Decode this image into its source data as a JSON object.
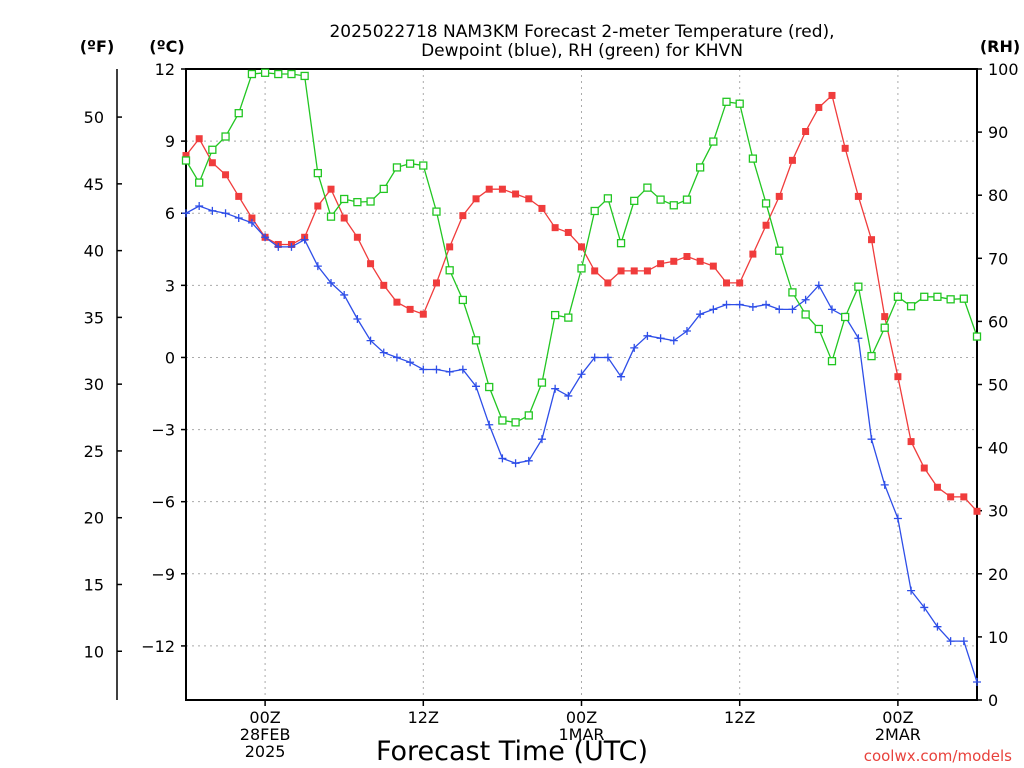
{
  "chart_data": {
    "type": "line",
    "title_line1": "2025022718 NAM3KM Forecast 2-meter Temperature (red),",
    "title_line2": "Dewpoint (blue), RH (green) for KHVN",
    "xlabel": "Forecast Time (UTC)",
    "left_outer_unit": "(ºF)",
    "left_inner_unit": "(ºC)",
    "right_unit": "(RH)",
    "credit": "coolwx.com/models",
    "grid": true,
    "x_range_hours": [
      -6,
      54
    ],
    "y_left_range_c": [
      -14.25,
      12
    ],
    "y_right_range": [
      0,
      100
    ],
    "x_ticks": [
      {
        "hour": 0,
        "l1": "00Z",
        "l2": "28FEB",
        "l3": "2025"
      },
      {
        "hour": 12,
        "l1": "12Z",
        "l2": "",
        "l3": ""
      },
      {
        "hour": 24,
        "l1": "00Z",
        "l2": "1MAR",
        "l3": ""
      },
      {
        "hour": 36,
        "l1": "12Z",
        "l2": "",
        "l3": ""
      },
      {
        "hour": 48,
        "l1": "00Z",
        "l2": "2MAR",
        "l3": ""
      }
    ],
    "yC_ticks": [
      "12",
      "9",
      "6",
      "3",
      "0",
      "−3",
      "−6",
      "−9",
      "−12"
    ],
    "yF_ticks": [
      "50",
      "45",
      "40",
      "35",
      "30",
      "25",
      "20",
      "15",
      "10"
    ],
    "yRH_ticks": [
      "100",
      "90",
      "80",
      "70",
      "60",
      "50",
      "40",
      "30",
      "20",
      "10",
      "0"
    ],
    "series": [
      {
        "name": "Temperature",
        "unit": "C",
        "color": "#f03c3c",
        "marker": "filled-square",
        "values": [
          [
            -6,
            8.4
          ],
          [
            -5,
            9.1
          ],
          [
            -4,
            8.1
          ],
          [
            -3,
            7.6
          ],
          [
            -2,
            6.7
          ],
          [
            -1,
            5.8
          ],
          [
            0,
            5.0
          ],
          [
            1,
            4.7
          ],
          [
            2,
            4.7
          ],
          [
            3,
            5.0
          ],
          [
            4,
            6.3
          ],
          [
            5,
            7.0
          ],
          [
            6,
            5.8
          ],
          [
            7,
            5.0
          ],
          [
            8,
            3.9
          ],
          [
            9,
            3.0
          ],
          [
            10,
            2.3
          ],
          [
            11,
            2.0
          ],
          [
            12,
            1.8
          ],
          [
            13,
            3.1
          ],
          [
            14,
            4.6
          ],
          [
            15,
            5.9
          ],
          [
            16,
            6.6
          ],
          [
            17,
            7.0
          ],
          [
            18,
            7.0
          ],
          [
            19,
            6.8
          ],
          [
            20,
            6.6
          ],
          [
            21,
            6.2
          ],
          [
            22,
            5.4
          ],
          [
            23,
            5.2
          ],
          [
            24,
            4.6
          ],
          [
            25,
            3.6
          ],
          [
            26,
            3.1
          ],
          [
            27,
            3.6
          ],
          [
            28,
            3.6
          ],
          [
            29,
            3.6
          ],
          [
            30,
            3.9
          ],
          [
            31,
            4.0
          ],
          [
            32,
            4.2
          ],
          [
            33,
            4.0
          ],
          [
            34,
            3.8
          ],
          [
            35,
            3.1
          ],
          [
            36,
            3.1
          ],
          [
            37,
            4.3
          ],
          [
            38,
            5.5
          ],
          [
            39,
            6.7
          ],
          [
            40,
            8.2
          ],
          [
            41,
            9.4
          ],
          [
            42,
            10.4
          ],
          [
            43,
            10.9
          ],
          [
            44,
            8.7
          ],
          [
            45,
            6.7
          ],
          [
            46,
            4.9
          ],
          [
            47,
            1.7
          ],
          [
            48,
            -0.8
          ],
          [
            49,
            -3.5
          ],
          [
            50,
            -4.6
          ],
          [
            51,
            -5.4
          ],
          [
            52,
            -5.8
          ],
          [
            53,
            -5.8
          ],
          [
            54,
            -6.4
          ]
        ]
      },
      {
        "name": "Dewpoint",
        "unit": "C",
        "color": "#2e4ee8",
        "marker": "plus",
        "values": [
          [
            -6,
            6.0
          ],
          [
            -5,
            6.3
          ],
          [
            -4,
            6.1
          ],
          [
            -3,
            6.0
          ],
          [
            -2,
            5.8
          ],
          [
            -1,
            5.6
          ],
          [
            0,
            5.0
          ],
          [
            1,
            4.6
          ],
          [
            2,
            4.6
          ],
          [
            3,
            4.9
          ],
          [
            4,
            3.8
          ],
          [
            5,
            3.1
          ],
          [
            6,
            2.6
          ],
          [
            7,
            1.6
          ],
          [
            8,
            0.7
          ],
          [
            9,
            0.2
          ],
          [
            10,
            0.0
          ],
          [
            11,
            -0.2
          ],
          [
            12,
            -0.5
          ],
          [
            13,
            -0.5
          ],
          [
            14,
            -0.6
          ],
          [
            15,
            -0.5
          ],
          [
            16,
            -1.2
          ],
          [
            17,
            -2.8
          ],
          [
            18,
            -4.2
          ],
          [
            19,
            -4.4
          ],
          [
            20,
            -4.3
          ],
          [
            21,
            -3.4
          ],
          [
            22,
            -1.3
          ],
          [
            23,
            -1.6
          ],
          [
            24,
            -0.7
          ],
          [
            25,
            0.0
          ],
          [
            26,
            0.0
          ],
          [
            27,
            -0.8
          ],
          [
            28,
            0.4
          ],
          [
            29,
            0.9
          ],
          [
            30,
            0.8
          ],
          [
            31,
            0.7
          ],
          [
            32,
            1.1
          ],
          [
            33,
            1.8
          ],
          [
            34,
            2.0
          ],
          [
            35,
            2.2
          ],
          [
            36,
            2.2
          ],
          [
            37,
            2.1
          ],
          [
            38,
            2.2
          ],
          [
            39,
            2.0
          ],
          [
            40,
            2.0
          ],
          [
            41,
            2.4
          ],
          [
            42,
            3.0
          ],
          [
            43,
            2.0
          ],
          [
            44,
            1.7
          ],
          [
            45,
            0.8
          ],
          [
            46,
            -3.4
          ],
          [
            47,
            -5.3
          ],
          [
            48,
            -6.7
          ],
          [
            49,
            -9.7
          ],
          [
            50,
            -10.4
          ],
          [
            51,
            -11.2
          ],
          [
            52,
            -11.8
          ],
          [
            53,
            -11.8
          ],
          [
            54,
            -13.5
          ]
        ]
      },
      {
        "name": "RH",
        "unit": "%",
        "color": "#22c622",
        "marker": "open-square",
        "values": [
          [
            -6,
            85.5
          ],
          [
            -5,
            82.0
          ],
          [
            -4,
            87.2
          ],
          [
            -3,
            89.3
          ],
          [
            -2,
            93.0
          ],
          [
            -1,
            99.2
          ],
          [
            0,
            99.4
          ],
          [
            1,
            99.2
          ],
          [
            2,
            99.2
          ],
          [
            3,
            98.9
          ],
          [
            4,
            83.5
          ],
          [
            5,
            76.6
          ],
          [
            6,
            79.4
          ],
          [
            7,
            78.9
          ],
          [
            8,
            79.0
          ],
          [
            9,
            81.0
          ],
          [
            10,
            84.4
          ],
          [
            11,
            85.0
          ],
          [
            12,
            84.7
          ],
          [
            13,
            77.4
          ],
          [
            14,
            68.1
          ],
          [
            15,
            63.4
          ],
          [
            16,
            57.0
          ],
          [
            17,
            49.6
          ],
          [
            18,
            44.3
          ],
          [
            19,
            44.0
          ],
          [
            20,
            45.1
          ],
          [
            21,
            50.3
          ],
          [
            22,
            61.0
          ],
          [
            23,
            60.6
          ],
          [
            24,
            68.4
          ],
          [
            25,
            77.5
          ],
          [
            26,
            79.5
          ],
          [
            27,
            72.4
          ],
          [
            28,
            79.1
          ],
          [
            29,
            81.2
          ],
          [
            30,
            79.3
          ],
          [
            31,
            78.4
          ],
          [
            32,
            79.3
          ],
          [
            33,
            84.4
          ],
          [
            34,
            88.5
          ],
          [
            35,
            94.8
          ],
          [
            36,
            94.5
          ],
          [
            37,
            85.8
          ],
          [
            38,
            78.7
          ],
          [
            39,
            71.2
          ],
          [
            40,
            64.6
          ],
          [
            41,
            61.1
          ],
          [
            42,
            58.8
          ],
          [
            43,
            53.7
          ],
          [
            44,
            60.7
          ],
          [
            45,
            65.5
          ],
          [
            46,
            54.5
          ],
          [
            47,
            59.0
          ],
          [
            48,
            63.9
          ],
          [
            49,
            62.4
          ],
          [
            50,
            63.9
          ],
          [
            51,
            63.9
          ],
          [
            52,
            63.5
          ],
          [
            53,
            63.6
          ],
          [
            54,
            57.6
          ]
        ]
      }
    ]
  }
}
